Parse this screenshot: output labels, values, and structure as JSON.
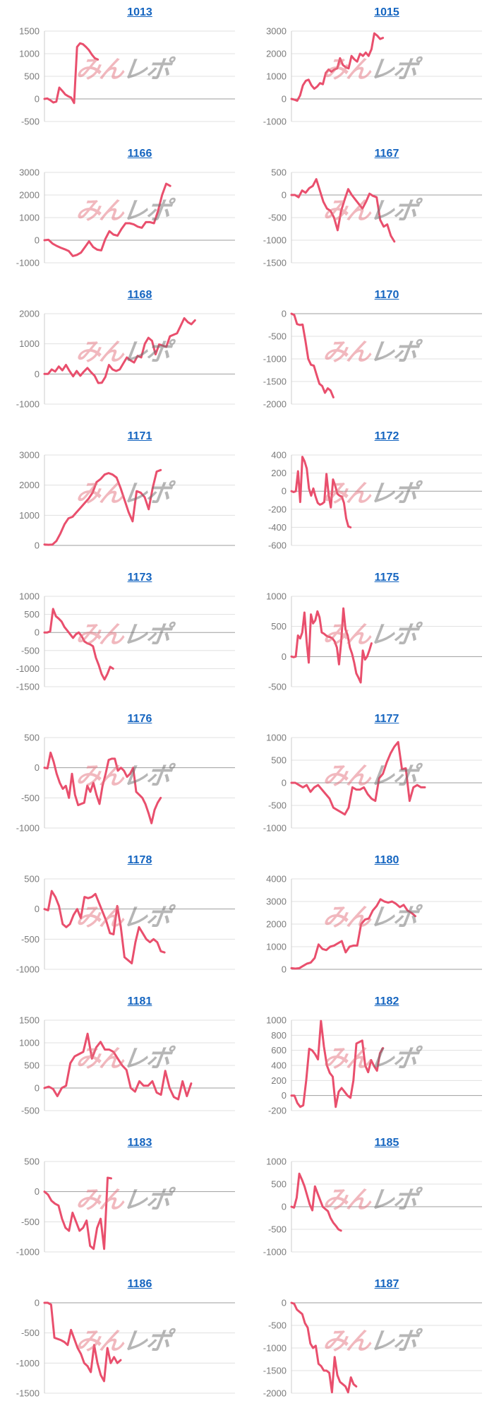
{
  "page": {
    "watermark": {
      "part1": "みん",
      "part2": "レポ"
    }
  },
  "style": {
    "link_color": "#1565c0",
    "line_color": "#e94f6d",
    "grid_color": "#e0e0e0",
    "zero_line_color": "#9e9e9e",
    "axis_line_color": "#cccccc",
    "label_color": "#7a7a7a",
    "watermark_pink": "#e4737f",
    "watermark_gray": "#6f6f6f"
  },
  "chart_data": [
    {
      "type": "line",
      "title": "1013",
      "ylim": [
        -500,
        1500
      ],
      "ytick_step": 500,
      "x_end": 0.28,
      "values": [
        0,
        10,
        -30,
        -80,
        -60,
        250,
        180,
        100,
        60,
        30,
        -90,
        1150,
        1230,
        1210,
        1150,
        1080,
        980,
        900,
        870
      ]
    },
    {
      "type": "line",
      "title": "1015",
      "ylim": [
        -1000,
        3000
      ],
      "ytick_step": 1000,
      "x_end": 0.48,
      "values": [
        0,
        -30,
        -80,
        150,
        600,
        800,
        850,
        600,
        450,
        550,
        700,
        650,
        1150,
        1300,
        1200,
        1300,
        1350,
        1800,
        1500,
        1400,
        1350,
        1900,
        1750,
        1650,
        2000,
        1900,
        2050,
        1900,
        2200,
        2900,
        2800,
        2650,
        2700
      ]
    },
    {
      "type": "line",
      "title": "1166",
      "ylim": [
        -1000,
        3000
      ],
      "ytick_step": 1000,
      "x_end": 0.66,
      "values": [
        0,
        20,
        -150,
        -250,
        -330,
        -400,
        -480,
        -700,
        -650,
        -550,
        -300,
        -50,
        -300,
        -420,
        -450,
        50,
        400,
        250,
        200,
        500,
        750,
        750,
        700,
        600,
        550,
        800,
        800,
        750,
        1300,
        2000,
        2500,
        2400
      ]
    },
    {
      "type": "line",
      "title": "1167",
      "ylim": [
        -1500,
        500
      ],
      "ytick_step": 500,
      "x_end": 0.54,
      "values": [
        0,
        0,
        -50,
        100,
        50,
        150,
        200,
        350,
        100,
        -150,
        -300,
        -350,
        -500,
        -780,
        -350,
        -100,
        130,
        0,
        -100,
        -200,
        -300,
        -150,
        30,
        -20,
        -50,
        -550,
        -700,
        -650,
        -900,
        -1030
      ]
    },
    {
      "type": "line",
      "title": "1168",
      "ylim": [
        -1000,
        2000
      ],
      "ytick_step": 1000,
      "x_end": 0.79,
      "values": [
        0,
        0,
        150,
        80,
        250,
        120,
        300,
        100,
        -80,
        100,
        -60,
        80,
        200,
        60,
        -60,
        -300,
        -290,
        -100,
        300,
        150,
        100,
        150,
        350,
        550,
        450,
        380,
        600,
        550,
        1000,
        1200,
        1100,
        650,
        980,
        940,
        900,
        1250,
        1300,
        1350,
        1600,
        1850,
        1720,
        1650,
        1780
      ]
    },
    {
      "type": "line",
      "title": "1170",
      "ylim": [
        -2000,
        0
      ],
      "ytick_step": 500,
      "x_end": 0.22,
      "values": [
        0,
        -30,
        -230,
        -250,
        -240,
        -600,
        -1000,
        -1130,
        -1150,
        -1350,
        -1550,
        -1600,
        -1750,
        -1650,
        -1700,
        -1850
      ]
    },
    {
      "type": "line",
      "title": "1171",
      "ylim": [
        0,
        3000
      ],
      "ytick_step": 1000,
      "x_end": 0.61,
      "values": [
        30,
        20,
        30,
        150,
        400,
        700,
        900,
        950,
        1100,
        1250,
        1400,
        1550,
        1750,
        2100,
        2200,
        2350,
        2400,
        2350,
        2250,
        1900,
        1500,
        1100,
        800,
        1800,
        1750,
        1600,
        1200,
        1900,
        2450,
        2500
      ]
    },
    {
      "type": "line",
      "title": "1172",
      "ylim": [
        -600,
        400
      ],
      "ytick_step": 200,
      "x_end": 0.31,
      "values": [
        0,
        -10,
        0,
        220,
        -120,
        380,
        330,
        250,
        30,
        -50,
        30,
        -60,
        -130,
        -150,
        -140,
        -120,
        190,
        -40,
        -180,
        130,
        60,
        -30,
        -50,
        -60,
        -130,
        -300,
        -390,
        -400
      ]
    },
    {
      "type": "line",
      "title": "1173",
      "ylim": [
        -1500,
        1000
      ],
      "ytick_step": 500,
      "x_end": 0.36,
      "values": [
        0,
        0,
        30,
        650,
        450,
        380,
        300,
        150,
        50,
        -50,
        -150,
        -50,
        0,
        -100,
        -250,
        -300,
        -330,
        -380,
        -700,
        -900,
        -1150,
        -1300,
        -1150,
        -950,
        -1000
      ]
    },
    {
      "type": "line",
      "title": "1175",
      "ylim": [
        -500,
        1000
      ],
      "ytick_step": 500,
      "x_end": 0.42,
      "values": [
        0,
        -10,
        0,
        350,
        300,
        400,
        730,
        250,
        -100,
        700,
        550,
        600,
        750,
        650,
        400,
        380,
        350,
        330,
        320,
        300,
        250,
        150,
        -130,
        250,
        800,
        450,
        350,
        150,
        50,
        -100,
        -280,
        -350,
        -430,
        100,
        -50,
        0,
        100,
        220
      ]
    },
    {
      "type": "line",
      "title": "1176",
      "ylim": [
        -1000,
        500
      ],
      "ytick_step": 500,
      "x_end": 0.61,
      "values": [
        0,
        -10,
        250,
        100,
        -100,
        -250,
        -350,
        -300,
        -500,
        -100,
        -450,
        -620,
        -600,
        -580,
        -300,
        -400,
        -250,
        -450,
        -600,
        -300,
        -100,
        130,
        150,
        150,
        -50,
        0,
        -50,
        -150,
        -100,
        0,
        -400,
        -450,
        -500,
        -600,
        -750,
        -920,
        -700,
        -580,
        -500
      ]
    },
    {
      "type": "line",
      "title": "1177",
      "ylim": [
        -1000,
        1000
      ],
      "ytick_step": 500,
      "x_end": 0.7,
      "values": [
        0,
        0,
        -50,
        -100,
        -50,
        -200,
        -100,
        -50,
        -150,
        -250,
        -350,
        -550,
        -600,
        -650,
        -700,
        -550,
        -100,
        -150,
        -150,
        -100,
        -250,
        -350,
        -400,
        100,
        200,
        450,
        650,
        800,
        900,
        300,
        320,
        -400,
        -100,
        -50,
        -100,
        -100
      ]
    },
    {
      "type": "line",
      "title": "1178",
      "ylim": [
        -1000,
        500
      ],
      "ytick_step": 500,
      "x_end": 0.63,
      "values": [
        0,
        -20,
        300,
        200,
        50,
        -250,
        -300,
        -250,
        -100,
        0,
        -150,
        200,
        180,
        200,
        250,
        100,
        -50,
        -200,
        -400,
        -420,
        50,
        -300,
        -800,
        -850,
        -900,
        -550,
        -300,
        -400,
        -500,
        -550,
        -500,
        -550,
        -700,
        -720
      ]
    },
    {
      "type": "line",
      "title": "1180",
      "ylim": [
        0,
        4000
      ],
      "ytick_step": 1000,
      "x_end": 0.65,
      "values": [
        50,
        30,
        50,
        150,
        250,
        300,
        500,
        1100,
        900,
        850,
        1000,
        1050,
        1150,
        1250,
        750,
        1000,
        1050,
        1050,
        2000,
        2200,
        2250,
        2600,
        2800,
        3100,
        3000,
        2950,
        3000,
        2900,
        2750,
        2850,
        2600,
        2500,
        2350
      ]
    },
    {
      "type": "line",
      "title": "1181",
      "ylim": [
        -500,
        1500
      ],
      "ytick_step": 500,
      "x_end": 0.77,
      "values": [
        0,
        30,
        -20,
        -180,
        0,
        50,
        550,
        700,
        750,
        800,
        1200,
        650,
        900,
        1020,
        850,
        850,
        800,
        650,
        500,
        400,
        0,
        -80,
        150,
        50,
        50,
        150,
        -100,
        -150,
        380,
        0,
        -200,
        -250,
        150,
        -180,
        100
      ]
    },
    {
      "type": "line",
      "title": "1182",
      "ylim": [
        -200,
        1000
      ],
      "ytick_step": 200,
      "x_end": 0.48,
      "values": [
        0,
        0,
        -100,
        -150,
        -130,
        200,
        620,
        600,
        550,
        480,
        990,
        650,
        400,
        300,
        250,
        -150,
        50,
        100,
        50,
        0,
        -30,
        200,
        690,
        710,
        730,
        400,
        310,
        470,
        390,
        330,
        560,
        630
      ]
    },
    {
      "type": "line",
      "title": "1183",
      "ylim": [
        -1000,
        500
      ],
      "ytick_step": 500,
      "x_end": 0.35,
      "values": [
        0,
        -50,
        -150,
        -200,
        -230,
        -450,
        -600,
        -650,
        -350,
        -500,
        -650,
        -600,
        -480,
        -900,
        -950,
        -600,
        -450,
        -950,
        230,
        220
      ]
    },
    {
      "type": "line",
      "title": "1185",
      "ylim": [
        -1000,
        1000
      ],
      "ytick_step": 500,
      "x_end": 0.26,
      "values": [
        0,
        -20,
        200,
        730,
        600,
        450,
        250,
        50,
        -80,
        450,
        300,
        150,
        0,
        -50,
        -100,
        -250,
        -350,
        -420,
        -500,
        -530
      ]
    },
    {
      "type": "line",
      "title": "1186",
      "ylim": [
        -1500,
        0
      ],
      "ytick_step": 500,
      "x_end": 0.4,
      "values": [
        0,
        0,
        -30,
        -580,
        -600,
        -620,
        -650,
        -700,
        -450,
        -600,
        -750,
        -850,
        -1000,
        -1050,
        -1150,
        -700,
        -1000,
        -1200,
        -1300,
        -750,
        -1000,
        -900,
        -1000,
        -950
      ]
    },
    {
      "type": "line",
      "title": "1187",
      "ylim": [
        -2000,
        0
      ],
      "ytick_step": 500,
      "x_end": 0.34,
      "values": [
        0,
        -20,
        -150,
        -200,
        -250,
        -450,
        -550,
        -900,
        -1000,
        -950,
        -1350,
        -1400,
        -1500,
        -1500,
        -1550,
        -1980,
        -1200,
        -1600,
        -1750,
        -1800,
        -1850,
        -1980,
        -1650,
        -1800,
        -1850
      ]
    }
  ]
}
